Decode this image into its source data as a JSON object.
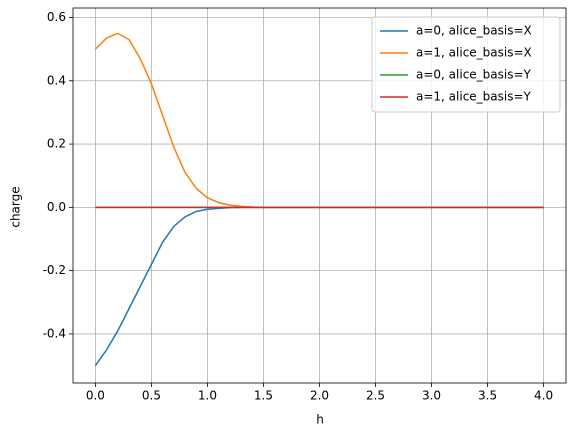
{
  "chart_data": {
    "type": "line",
    "xlabel": "h",
    "ylabel": "charge",
    "x": [
      0,
      0.1,
      0.2,
      0.3,
      0.4,
      0.5,
      0.6,
      0.7,
      0.8,
      0.9,
      1,
      1.1,
      1.2,
      1.3,
      1.4,
      1.5,
      1.6,
      1.7,
      1.8,
      1.9,
      2,
      2.1,
      2.2,
      2.3,
      2.4,
      2.5,
      2.6,
      2.7,
      2.8,
      2.9,
      3,
      3.1,
      3.2,
      3.3,
      3.4,
      3.5,
      3.6,
      3.7,
      3.8,
      3.9,
      4
    ],
    "series": [
      {
        "name": "a=0, alice_basis=X",
        "color": "#1f77b4",
        "values": [
          -0.5,
          -0.45,
          -0.39,
          -0.32,
          -0.25,
          -0.18,
          -0.11,
          -0.06,
          -0.03,
          -0.013,
          -0.006,
          -0.003,
          -0.001,
          0,
          0,
          0,
          0,
          0,
          0,
          0,
          0,
          0,
          0,
          0,
          0,
          0,
          0,
          0,
          0,
          0,
          0,
          0,
          0,
          0,
          0,
          0,
          0,
          0,
          0,
          0,
          0
        ]
      },
      {
        "name": "a=1, alice_basis=X",
        "color": "#ff7f0e",
        "values": [
          0.5,
          0.535,
          0.55,
          0.53,
          0.47,
          0.39,
          0.29,
          0.19,
          0.11,
          0.06,
          0.03,
          0.015,
          0.007,
          0.003,
          0.001,
          0,
          0,
          0,
          0,
          0,
          0,
          0,
          0,
          0,
          0,
          0,
          0,
          0,
          0,
          0,
          0,
          0,
          0,
          0,
          0,
          0,
          0,
          0,
          0,
          0,
          0
        ]
      },
      {
        "name": "a=0, alice_basis=Y",
        "color": "#2ca02c",
        "values": [
          0,
          0,
          0,
          0,
          0,
          0,
          0,
          0,
          0,
          0,
          0,
          0,
          0,
          0,
          0,
          0,
          0,
          0,
          0,
          0,
          0,
          0,
          0,
          0,
          0,
          0,
          0,
          0,
          0,
          0,
          0,
          0,
          0,
          0,
          0,
          0,
          0,
          0,
          0,
          0,
          0
        ]
      },
      {
        "name": "a=1, alice_basis=Y",
        "color": "#d62728",
        "values": [
          0,
          0,
          0,
          0,
          0,
          0,
          0,
          0,
          0,
          0,
          0,
          0,
          0,
          0,
          0,
          0,
          0,
          0,
          0,
          0,
          0,
          0,
          0,
          0,
          0,
          0,
          0,
          0,
          0,
          0,
          0,
          0,
          0,
          0,
          0,
          0,
          0,
          0,
          0,
          0,
          0
        ]
      }
    ],
    "xlim": [
      -0.2,
      4.2
    ],
    "xticks": [
      {
        "value": 0,
        "label": "0.0"
      },
      0.5,
      {
        "value": 1,
        "label": "1.0"
      },
      1.5,
      {
        "value": 2,
        "label": "2.0"
      },
      2.5,
      {
        "value": 3,
        "label": "3.0"
      },
      3.5,
      {
        "value": 4,
        "label": "4.0"
      }
    ],
    "ylim": [
      -0.555,
      0.63
    ],
    "yticks": [
      -0.4,
      -0.2,
      {
        "value": 0,
        "label": "0.0"
      },
      0.2,
      0.4,
      0.6
    ],
    "grid": true,
    "legend": "upper right"
  }
}
